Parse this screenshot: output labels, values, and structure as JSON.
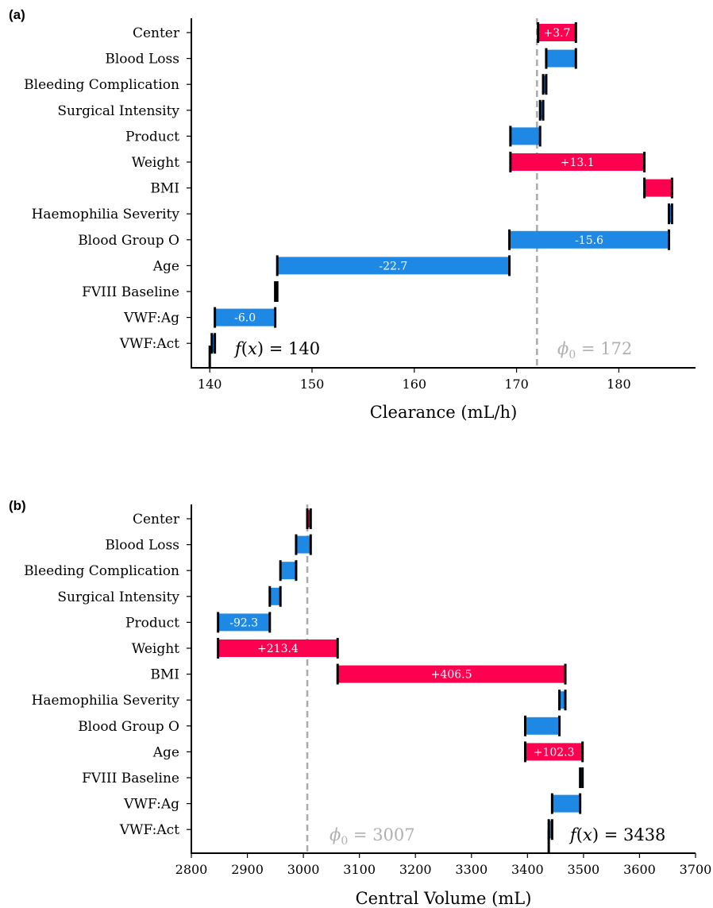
{
  "chart_data": [
    {
      "panel_label": "(a)",
      "type": "waterfall",
      "xlabel": "Clearance (mL/h)",
      "xlim": [
        138.2,
        187.5
      ],
      "xticks": [
        140,
        150,
        160,
        170,
        180
      ],
      "base_value": 172,
      "base_label": "ϕ₀ = 172",
      "output_value": 140,
      "output_label": "f(x) = 140",
      "features": [
        {
          "name": "Center",
          "start": 172.1,
          "end": 175.8,
          "label": "+3.7"
        },
        {
          "name": "Blood Loss",
          "start": 175.8,
          "end": 172.9,
          "label": ""
        },
        {
          "name": "Bleeding Complication",
          "start": 172.9,
          "end": 172.6,
          "label": ""
        },
        {
          "name": "Surgical Intensity",
          "start": 172.6,
          "end": 172.3,
          "label": ""
        },
        {
          "name": "Product",
          "start": 172.3,
          "end": 169.4,
          "label": ""
        },
        {
          "name": "Weight",
          "start": 169.4,
          "end": 182.5,
          "label": "+13.1"
        },
        {
          "name": "BMI",
          "start": 182.5,
          "end": 185.2,
          "label": ""
        },
        {
          "name": "Haemophilia Severity",
          "start": 185.2,
          "end": 184.9,
          "label": ""
        },
        {
          "name": "Blood Group O",
          "start": 184.9,
          "end": 169.3,
          "label": "-15.6"
        },
        {
          "name": "Age",
          "start": 169.3,
          "end": 146.6,
          "label": "-22.7"
        },
        {
          "name": "FVIII Baseline",
          "start": 146.6,
          "end": 146.4,
          "label": ""
        },
        {
          "name": "VWF:Ag",
          "start": 146.4,
          "end": 140.5,
          "label": "-6.0"
        },
        {
          "name": "VWF:Act",
          "start": 140.5,
          "end": 140.2,
          "label": ""
        }
      ]
    },
    {
      "panel_label": "(b)",
      "type": "waterfall",
      "xlabel": "Central Volume (mL)",
      "xlim": [
        2800,
        3700
      ],
      "xticks": [
        2800,
        2900,
        3000,
        3100,
        3200,
        3300,
        3400,
        3500,
        3600,
        3700
      ],
      "base_value": 3007,
      "base_label": "ϕ₀ = 3007",
      "output_value": 3438,
      "output_label": "f(x) = 3438",
      "features": [
        {
          "name": "Center",
          "start": 3007,
          "end": 3013,
          "label": ""
        },
        {
          "name": "Blood Loss",
          "start": 3013,
          "end": 2987,
          "label": ""
        },
        {
          "name": "Bleeding Complication",
          "start": 2987,
          "end": 2959,
          "label": ""
        },
        {
          "name": "Surgical Intensity",
          "start": 2959,
          "end": 2940,
          "label": ""
        },
        {
          "name": "Product",
          "start": 2940,
          "end": 2847.7,
          "label": "-92.3"
        },
        {
          "name": "Weight",
          "start": 2847.7,
          "end": 3061.1,
          "label": "+213.4"
        },
        {
          "name": "BMI",
          "start": 3061.1,
          "end": 3467.6,
          "label": "+406.5"
        },
        {
          "name": "Haemophilia Severity",
          "start": 3467.6,
          "end": 3457,
          "label": ""
        },
        {
          "name": "Blood Group O",
          "start": 3457,
          "end": 3396,
          "label": ""
        },
        {
          "name": "Age",
          "start": 3396,
          "end": 3498.3,
          "label": "+102.3"
        },
        {
          "name": "FVIII Baseline",
          "start": 3498.3,
          "end": 3494,
          "label": ""
        },
        {
          "name": "VWF:Ag",
          "start": 3494,
          "end": 3444,
          "label": ""
        },
        {
          "name": "VWF:Act",
          "start": 3444,
          "end": 3438,
          "label": ""
        }
      ]
    }
  ],
  "colors": {
    "positive": "#ff0051",
    "negative": "#1e88e5",
    "base_line": "#aaaaaa",
    "base_text": "#b0b0b0",
    "axis": "#000000"
  }
}
